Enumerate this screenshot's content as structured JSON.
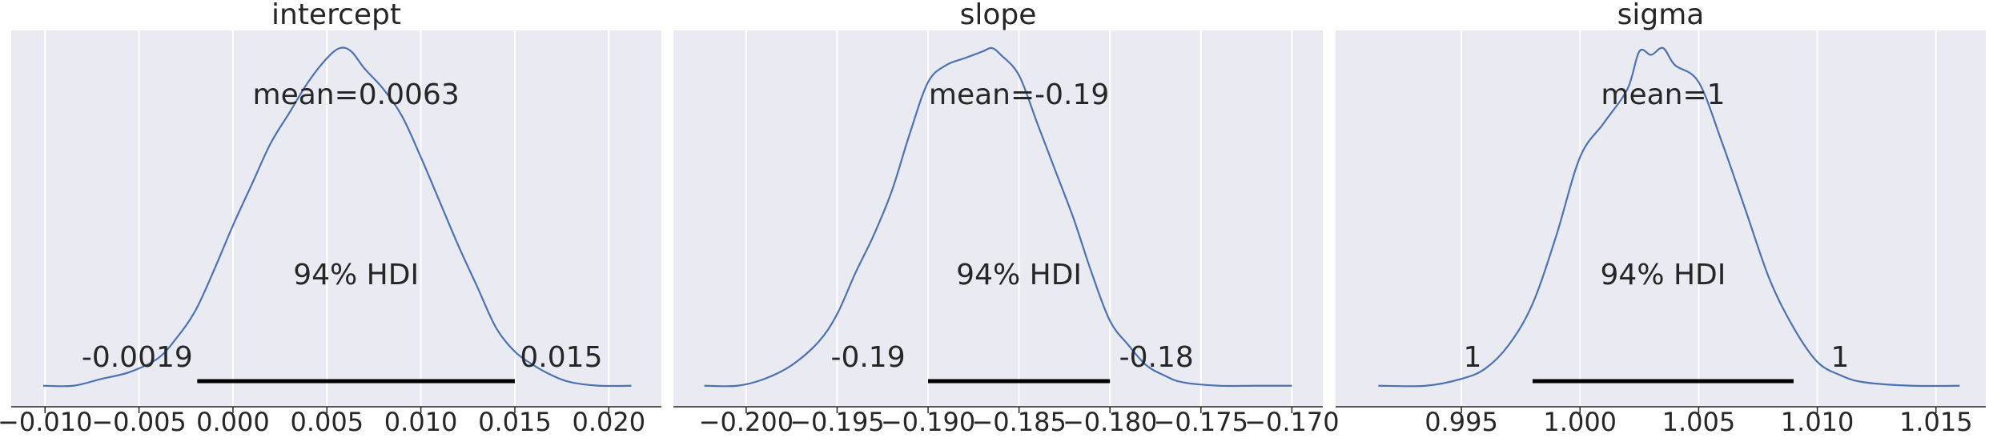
{
  "chart_data": [
    {
      "type": "area",
      "title": "intercept",
      "xlabel": "",
      "ylabel": "",
      "xlim": [
        -0.0118,
        0.0228
      ],
      "xticks": [
        -0.01,
        -0.005,
        0.0,
        0.005,
        0.01,
        0.015,
        0.02
      ],
      "xtick_labels": [
        "−0.010",
        "−0.005",
        "0.000",
        "0.005",
        "0.010",
        "0.015",
        "0.020"
      ],
      "grid": true,
      "line_color": "#4c72b0",
      "hdi_color": "#000000",
      "background": "#eaeaf2",
      "x": [
        -0.0101,
        -0.0085,
        -0.007,
        -0.0055,
        -0.004,
        -0.003,
        -0.002,
        -0.001,
        0.0,
        0.001,
        0.002,
        0.003,
        0.004,
        0.005,
        0.0057,
        0.0063,
        0.007,
        0.008,
        0.009,
        0.01,
        0.011,
        0.012,
        0.013,
        0.014,
        0.015,
        0.016,
        0.017,
        0.018,
        0.0195,
        0.0212
      ],
      "density": [
        0.01,
        0.01,
        0.03,
        0.05,
        0.09,
        0.15,
        0.23,
        0.35,
        0.48,
        0.6,
        0.72,
        0.81,
        0.9,
        0.97,
        1.0,
        0.99,
        0.94,
        0.88,
        0.8,
        0.68,
        0.55,
        0.42,
        0.3,
        0.18,
        0.11,
        0.07,
        0.04,
        0.02,
        0.01,
        0.01
      ],
      "mean": 0.0063,
      "mean_label": "mean=0.0063",
      "hdi_label": "94% HDI",
      "hdi": [
        -0.0019,
        0.015
      ],
      "hdi_low_label": "-0.0019",
      "hdi_high_label": "0.015"
    },
    {
      "type": "area",
      "title": "slope",
      "xlabel": "",
      "ylabel": "",
      "xlim": [
        -0.204,
        -0.1683
      ],
      "xticks": [
        -0.2,
        -0.195,
        -0.19,
        -0.185,
        -0.18,
        -0.175,
        -0.17
      ],
      "xtick_labels": [
        "−0.200",
        "−0.195",
        "−0.190",
        "−0.185",
        "−0.180",
        "−0.175",
        "−0.170"
      ],
      "grid": true,
      "line_color": "#4c72b0",
      "hdi_color": "#000000",
      "background": "#eaeaf2",
      "x": [
        -0.2023,
        -0.2005,
        -0.199,
        -0.1975,
        -0.196,
        -0.195,
        -0.194,
        -0.193,
        -0.192,
        -0.191,
        -0.19,
        -0.189,
        -0.188,
        -0.187,
        -0.1865,
        -0.186,
        -0.185,
        -0.184,
        -0.183,
        -0.182,
        -0.181,
        -0.18,
        -0.179,
        -0.178,
        -0.177,
        -0.176,
        -0.174,
        -0.172,
        -0.17
      ],
      "density": [
        0.01,
        0.01,
        0.03,
        0.07,
        0.14,
        0.22,
        0.34,
        0.45,
        0.58,
        0.75,
        0.9,
        0.95,
        0.97,
        0.99,
        1.0,
        0.98,
        0.92,
        0.78,
        0.64,
        0.5,
        0.34,
        0.2,
        0.13,
        0.07,
        0.04,
        0.02,
        0.01,
        0.01,
        0.01
      ],
      "mean": -0.19,
      "mean_label": "mean=-0.19",
      "hdi_label": "94% HDI",
      "hdi": [
        -0.19,
        -0.18
      ],
      "hdi_low_label": "-0.19",
      "hdi_high_label": "-0.18"
    },
    {
      "type": "area",
      "title": "sigma",
      "xlabel": "",
      "ylabel": "",
      "xlim": [
        0.9897,
        1.0171
      ],
      "xticks": [
        0.995,
        1.0,
        1.005,
        1.01,
        1.015
      ],
      "xtick_labels": [
        "0.995",
        "1.000",
        "1.005",
        "1.010",
        "1.015"
      ],
      "grid": true,
      "line_color": "#4c72b0",
      "hdi_color": "#000000",
      "background": "#eaeaf2",
      "x": [
        0.9915,
        0.9935,
        0.995,
        0.996,
        0.997,
        0.998,
        0.999,
        1.0,
        1.001,
        1.002,
        1.0025,
        1.003,
        1.0035,
        1.004,
        1.005,
        1.006,
        1.007,
        1.008,
        1.009,
        1.01,
        1.011,
        1.012,
        1.014,
        1.016
      ],
      "density": [
        0.01,
        0.01,
        0.03,
        0.06,
        0.13,
        0.25,
        0.45,
        0.68,
        0.78,
        0.88,
        0.99,
        0.98,
        1.0,
        0.95,
        0.9,
        0.72,
        0.52,
        0.32,
        0.18,
        0.08,
        0.04,
        0.02,
        0.01,
        0.01
      ],
      "mean": 1,
      "mean_label": "mean=1",
      "hdi_label": "94% HDI",
      "hdi": [
        1,
        1
      ],
      "hdi_low_label": "1",
      "hdi_high_label": "1"
    }
  ]
}
